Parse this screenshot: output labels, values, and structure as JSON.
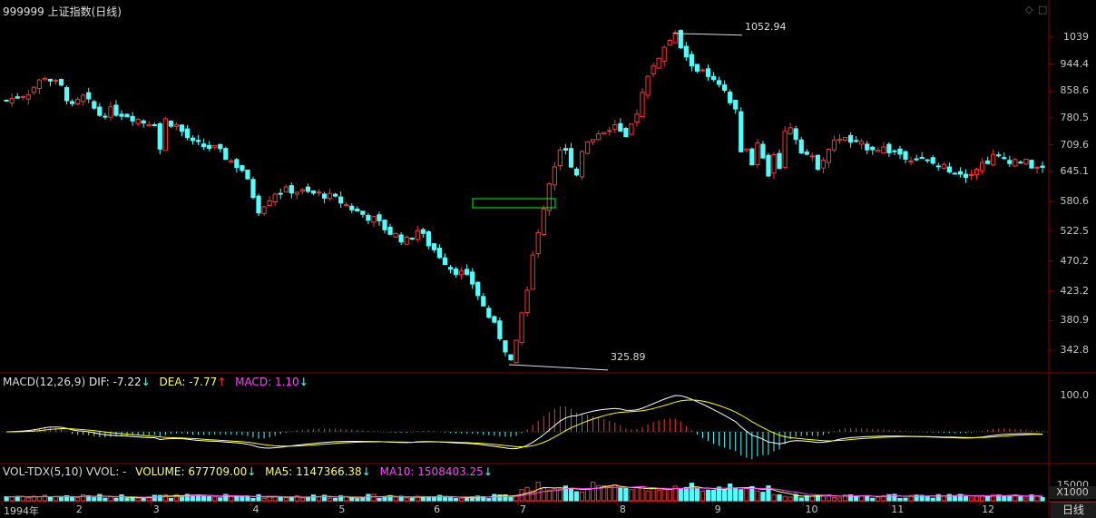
{
  "title": "999999 上证指数(日线)",
  "window_controls": [
    "◇",
    "□"
  ],
  "colors": {
    "up": "#ff3232",
    "down": "#54fcfc",
    "dif": "#ffffff",
    "dea": "#ffff00",
    "macd": "#ff00ff",
    "grid": "#880000",
    "selection": "#00ff00"
  },
  "main_axis": {
    "ticks": [
      "1039",
      "944.4",
      "858.6",
      "780.5",
      "709.6",
      "645.1",
      "580.6",
      "522.5",
      "470.2",
      "423.2",
      "380.9",
      "342.8"
    ]
  },
  "annotations": {
    "high": "1052.94",
    "low": "325.89"
  },
  "macd": {
    "label": "MACD(12,26,9)",
    "dif": "DIF: -7.22",
    "dea": "DEA: -7.77",
    "macd": "MACD: 1.10",
    "dif_arrow": "↓",
    "dea_arrow": "↑",
    "macd_arrow": "↓",
    "axis_tick": "100.0"
  },
  "volume": {
    "label": "VOL-TDX(5,10)",
    "vvol": "VVOL: -",
    "volume": "VOLUME: 677709.00",
    "ma5": "MA5: 1147366.38",
    "ma10": "MA10: 1508403.25",
    "arrow": "↓",
    "axis_tick": "15000",
    "unit": "X1000"
  },
  "x_axis": {
    "labels": [
      "1994年",
      "2",
      "3",
      "4",
      "5",
      "6",
      "7",
      "8",
      "9",
      "10",
      "11",
      "12"
    ]
  },
  "tab": "日线",
  "chart_data": {
    "type": "candlestick",
    "series_name": "上证指数",
    "period": "1994",
    "close_path": [
      [
        0,
        830
      ],
      [
        4,
        855
      ],
      [
        7,
        905
      ],
      [
        10,
        870
      ],
      [
        12,
        810
      ],
      [
        14,
        840
      ],
      [
        17,
        790
      ],
      [
        19,
        800
      ],
      [
        22,
        790
      ],
      [
        25,
        770
      ],
      [
        27,
        770
      ],
      [
        28,
        700
      ],
      [
        29,
        775
      ],
      [
        31,
        760
      ],
      [
        34,
        712
      ],
      [
        38,
        700
      ],
      [
        40,
        680
      ],
      [
        43,
        650
      ],
      [
        46,
        565
      ],
      [
        49,
        600
      ],
      [
        52,
        605
      ],
      [
        55,
        598
      ],
      [
        58,
        595
      ],
      [
        61,
        580
      ],
      [
        64,
        560
      ],
      [
        67,
        545
      ],
      [
        70,
        520
      ],
      [
        73,
        505
      ],
      [
        75,
        525
      ],
      [
        77,
        500
      ],
      [
        79,
        480
      ],
      [
        81,
        460
      ],
      [
        83,
        450
      ],
      [
        85,
        435
      ],
      [
        87,
        400
      ],
      [
        90,
        360
      ],
      [
        92,
        330
      ],
      [
        93,
        350
      ],
      [
        95,
        430
      ],
      [
        97,
        520
      ],
      [
        99,
        620
      ],
      [
        101,
        700
      ],
      [
        102,
        690
      ],
      [
        104,
        640
      ],
      [
        105,
        700
      ],
      [
        108,
        740
      ],
      [
        111,
        760
      ],
      [
        113,
        720
      ],
      [
        115,
        800
      ],
      [
        117,
        900
      ],
      [
        118,
        940
      ],
      [
        120,
        1000
      ],
      [
        122,
        1045
      ],
      [
        124,
        960
      ],
      [
        126,
        930
      ],
      [
        128,
        900
      ],
      [
        130,
        870
      ],
      [
        131,
        850
      ],
      [
        133,
        800
      ],
      [
        134,
        700
      ],
      [
        135,
        690
      ],
      [
        136,
        660
      ],
      [
        137,
        720
      ],
      [
        138,
        680
      ],
      [
        139,
        640
      ],
      [
        140,
        690
      ],
      [
        141,
        660
      ],
      [
        142,
        740
      ],
      [
        143,
        760
      ],
      [
        145,
        700
      ],
      [
        148,
        660
      ],
      [
        150,
        700
      ],
      [
        152,
        730
      ],
      [
        155,
        710
      ],
      [
        160,
        700
      ],
      [
        165,
        680
      ],
      [
        170,
        660
      ],
      [
        175,
        640
      ],
      [
        180,
        680
      ],
      [
        185,
        670
      ],
      [
        189,
        650
      ]
    ],
    "high": 1052.94,
    "low": 325.89,
    "y_scale": "log",
    "ylim": [
      330,
      1090
    ]
  }
}
